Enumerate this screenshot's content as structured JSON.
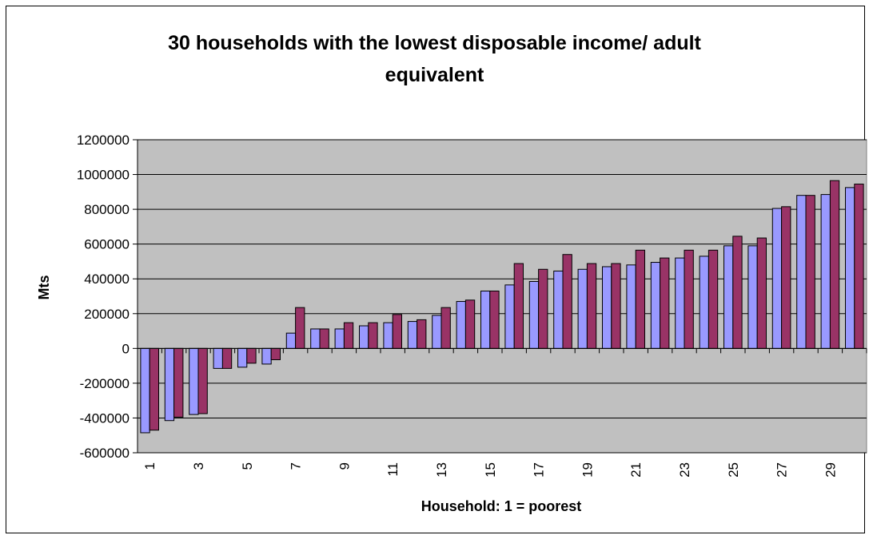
{
  "chart_data": {
    "type": "bar",
    "title_line1": "30 households with the lowest disposable income/ adult",
    "title_line2": "equivalent",
    "xlabel": "Household: 1 = poorest",
    "ylabel": "Mts",
    "ylim": [
      -600000,
      1200000
    ],
    "yticks": [
      1200000,
      1000000,
      800000,
      600000,
      400000,
      200000,
      0,
      -200000,
      -400000,
      -600000
    ],
    "ytick_labels": [
      "1200000",
      "1000000",
      "800000",
      "600000",
      "400000",
      "200000",
      "0",
      "-200000",
      "-400000",
      "-600000"
    ],
    "categories": [
      "1",
      "2",
      "3",
      "4",
      "5",
      "6",
      "7",
      "8",
      "9",
      "10",
      "11",
      "12",
      "13",
      "14",
      "15",
      "16",
      "17",
      "18",
      "19",
      "20",
      "21",
      "22",
      "23",
      "24",
      "25",
      "26",
      "27",
      "28",
      "29",
      "30"
    ],
    "xtick_labels": [
      "1",
      "3",
      "5",
      "7",
      "9",
      "11",
      "13",
      "15",
      "17",
      "19",
      "21",
      "23",
      "25",
      "27",
      "29"
    ],
    "grid": true,
    "plot_background": "#c0c0c0",
    "series": [
      {
        "color": "#9999ff",
        "values": [
          -485000,
          -415000,
          -380000,
          -115000,
          -108000,
          -90000,
          88000,
          112000,
          112000,
          130000,
          148000,
          155000,
          190000,
          270000,
          330000,
          365000,
          385000,
          445000,
          455000,
          470000,
          480000,
          495000,
          520000,
          530000,
          590000,
          590000,
          805000,
          880000,
          885000,
          925000
        ]
      },
      {
        "color": "#993366",
        "values": [
          -470000,
          -395000,
          -375000,
          -115000,
          -85000,
          -65000,
          235000,
          112000,
          148000,
          148000,
          195000,
          165000,
          235000,
          278000,
          330000,
          488000,
          455000,
          540000,
          488000,
          488000,
          565000,
          520000,
          565000,
          565000,
          645000,
          635000,
          815000,
          880000,
          965000,
          945000
        ]
      }
    ]
  }
}
